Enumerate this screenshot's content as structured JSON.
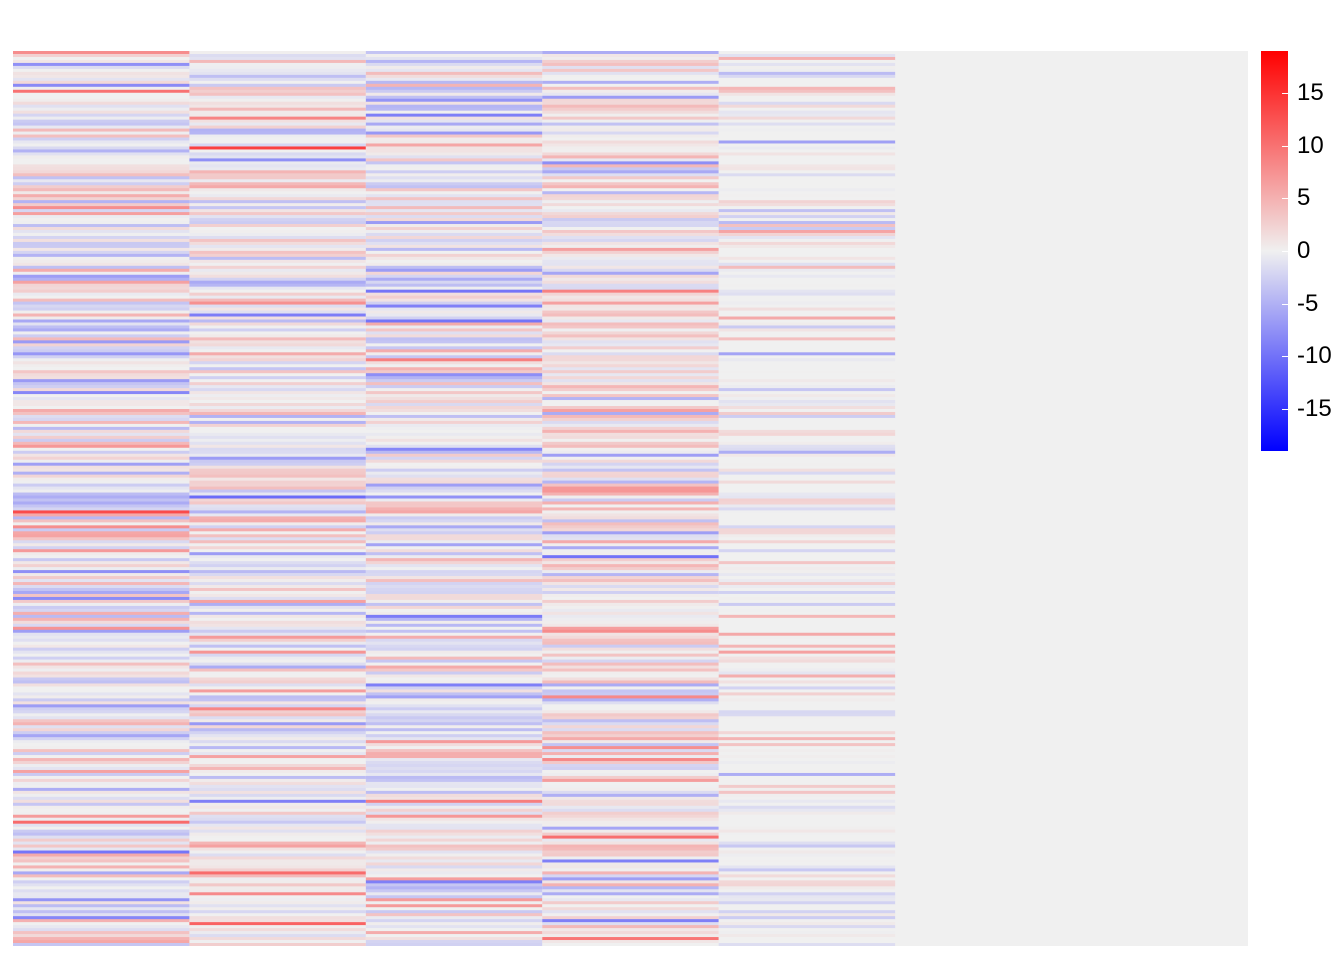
{
  "chart_data": {
    "type": "heatmap",
    "title": "",
    "xlabel": "",
    "ylabel": "",
    "n_rows": 300,
    "n_data_columns": 5,
    "n_empty_columns": 2,
    "columns": [
      {
        "amplitude": 14,
        "blue_bias": 0.08,
        "zero_fraction": 0.05,
        "seed": 11
      },
      {
        "amplitude": 12,
        "blue_bias": -0.05,
        "zero_fraction": 0.05,
        "seed": 23
      },
      {
        "amplitude": 12,
        "blue_bias": 0.02,
        "zero_fraction": 0.05,
        "seed": 37
      },
      {
        "amplitude": 12,
        "blue_bias": -0.1,
        "zero_fraction": 0.05,
        "seed": 51
      },
      {
        "amplitude": 9,
        "blue_bias": 0.0,
        "zero_fraction": 0.45,
        "seed": 73
      }
    ],
    "empty_fill": "#f0f0f0",
    "colorscale": {
      "low": "#0000ff",
      "mid": "#f0f0f0",
      "high": "#ff0000",
      "min": -19,
      "max": 19,
      "ticks": [
        15,
        10,
        5,
        0,
        -5,
        -10,
        -15
      ]
    },
    "legend_position": "right",
    "grid": false
  }
}
